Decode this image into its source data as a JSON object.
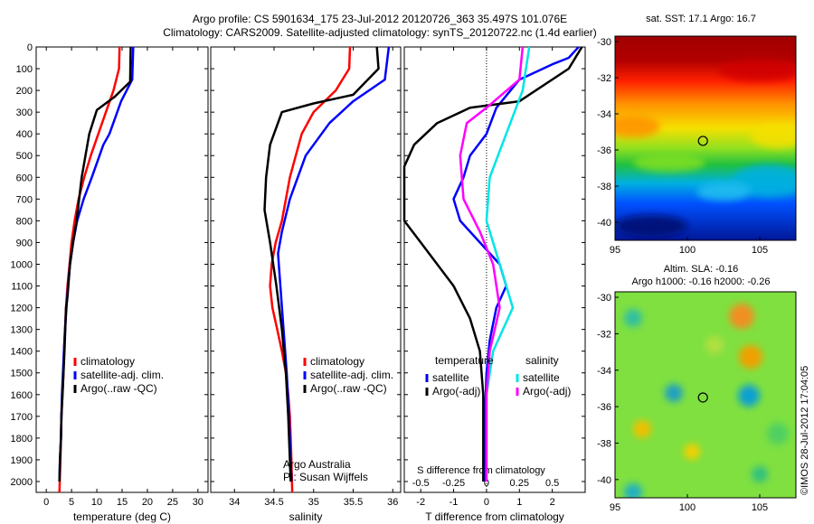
{
  "header": {
    "line1": "Argo profile: CS 5901634_175 23-Jul-2012 20120726_363 35.497S 101.076E",
    "line2": "Climatology: CARS2009. Satellite-adjusted climatology: synTS_20120722.nc (1.4d earlier)"
  },
  "depth_ticks": [
    0,
    100,
    200,
    300,
    400,
    500,
    600,
    700,
    800,
    900,
    1000,
    1100,
    1200,
    1300,
    1400,
    1500,
    1600,
    1700,
    1800,
    1900,
    2000
  ],
  "colors": {
    "climatology": "#ff0000",
    "satellite": "#0000ff",
    "argo": "#000000",
    "sat_salinity": "#00e5e5",
    "argo_salinity_adj": "#ff00ff"
  },
  "chart_data": [
    {
      "type": "line",
      "xlabel": "temperature (deg C)",
      "xlim": [
        -2,
        32
      ],
      "ylim": [
        2050,
        0
      ],
      "xticks": [
        0,
        5,
        10,
        15,
        20,
        25,
        30
      ],
      "legend": [
        "climatology",
        "satellite-adj. clim.",
        "Argo(..raw -QC)"
      ],
      "series": [
        {
          "name": "climatology",
          "color": "red",
          "points": [
            [
              14.5,
              0
            ],
            [
              14.4,
              100
            ],
            [
              13.3,
              200
            ],
            [
              11.8,
              300
            ],
            [
              10.3,
              400
            ],
            [
              8.8,
              500
            ],
            [
              7.5,
              600
            ],
            [
              6.4,
              700
            ],
            [
              5.6,
              800
            ],
            [
              5.0,
              900
            ],
            [
              4.6,
              1000
            ],
            [
              4.2,
              1100
            ],
            [
              3.9,
              1200
            ],
            [
              3.7,
              1300
            ],
            [
              3.5,
              1400
            ],
            [
              3.4,
              1500
            ],
            [
              3.2,
              1600
            ],
            [
              3.0,
              1700
            ],
            [
              2.9,
              1800
            ],
            [
              2.8,
              1900
            ],
            [
              2.6,
              2050
            ]
          ]
        },
        {
          "name": "satellite-adj. clim.",
          "color": "blue",
          "points": [
            [
              17.2,
              0
            ],
            [
              17.0,
              150
            ],
            [
              14.8,
              250
            ],
            [
              12.5,
              400
            ],
            [
              11.3,
              450
            ],
            [
              9.0,
              600
            ],
            [
              7.4,
              700
            ],
            [
              6.1,
              800
            ],
            [
              5.3,
              900
            ],
            [
              4.7,
              1000
            ],
            [
              4.3,
              1100
            ],
            [
              4.0,
              1200
            ],
            [
              3.7,
              1300
            ],
            [
              3.5,
              1400
            ],
            [
              3.3,
              1500
            ],
            [
              3.1,
              1600
            ],
            [
              3.0,
              1700
            ],
            [
              2.9,
              1800
            ],
            [
              2.7,
              1900
            ],
            [
              2.6,
              2000
            ]
          ]
        },
        {
          "name": "Argo(..raw -QC)",
          "color": "black",
          "points": [
            [
              16.7,
              0
            ],
            [
              16.6,
              160
            ],
            [
              13.5,
              230
            ],
            [
              10.0,
              290
            ],
            [
              8.5,
              400
            ],
            [
              7.0,
              600
            ],
            [
              6.0,
              800
            ],
            [
              5.3,
              900
            ],
            [
              4.7,
              1000
            ],
            [
              4.2,
              1150
            ],
            [
              3.9,
              1200
            ],
            [
              3.6,
              1400
            ],
            [
              3.4,
              1500
            ],
            [
              3.2,
              1600
            ],
            [
              3.0,
              1700
            ],
            [
              2.9,
              1800
            ],
            [
              2.7,
              1900
            ],
            [
              2.6,
              2000
            ]
          ]
        }
      ]
    },
    {
      "type": "line",
      "xlabel": "salinity",
      "xlim": [
        33.7,
        36.1
      ],
      "ylim": [
        2050,
        0
      ],
      "xticks": [
        34,
        34.5,
        35,
        35.5,
        36
      ],
      "legend": [
        "climatology",
        "satellite-adj. clim.",
        "Argo(..raw -QC)"
      ],
      "annotation": [
        "Argo Australia",
        "PI: Susan Wijffels"
      ],
      "series": [
        {
          "name": "climatology",
          "color": "red",
          "points": [
            [
              35.46,
              0
            ],
            [
              35.45,
              100
            ],
            [
              35.28,
              200
            ],
            [
              35.0,
              300
            ],
            [
              34.85,
              400
            ],
            [
              34.7,
              600
            ],
            [
              34.6,
              800
            ],
            [
              34.52,
              900
            ],
            [
              34.47,
              1000
            ],
            [
              34.45,
              1100
            ],
            [
              34.48,
              1200
            ],
            [
              34.54,
              1300
            ],
            [
              34.6,
              1400
            ],
            [
              34.65,
              1500
            ],
            [
              34.68,
              1600
            ],
            [
              34.7,
              1700
            ],
            [
              34.71,
              1800
            ],
            [
              34.72,
              1900
            ],
            [
              34.73,
              2050
            ]
          ]
        },
        {
          "name": "satellite-adj. clim.",
          "color": "blue",
          "points": [
            [
              35.95,
              0
            ],
            [
              35.9,
              150
            ],
            [
              35.5,
              250
            ],
            [
              35.2,
              350
            ],
            [
              34.9,
              500
            ],
            [
              34.7,
              700
            ],
            [
              34.6,
              850
            ],
            [
              34.55,
              950
            ],
            [
              34.58,
              1100
            ],
            [
              34.62,
              1300
            ],
            [
              34.66,
              1500
            ],
            [
              34.69,
              1700
            ],
            [
              34.71,
              1900
            ],
            [
              34.72,
              2000
            ]
          ]
        },
        {
          "name": "Argo(..raw -QC)",
          "color": "black",
          "points": [
            [
              35.8,
              0
            ],
            [
              35.82,
              100
            ],
            [
              35.5,
              220
            ],
            [
              35.0,
              260
            ],
            [
              34.6,
              300
            ],
            [
              34.45,
              450
            ],
            [
              34.4,
              600
            ],
            [
              34.38,
              750
            ],
            [
              34.45,
              900
            ],
            [
              34.53,
              1100
            ],
            [
              34.6,
              1300
            ],
            [
              34.65,
              1500
            ],
            [
              34.68,
              1700
            ],
            [
              34.7,
              1900
            ],
            [
              34.71,
              2000
            ]
          ]
        }
      ]
    },
    {
      "type": "line",
      "xlabel": "T difference from climatology",
      "x2label": "S difference from climatology",
      "xlim": [
        -2.5,
        3.0
      ],
      "ylim": [
        2050,
        0
      ],
      "xticks": [
        -2,
        -1,
        0,
        1,
        2
      ],
      "x2ticks": [
        -0.5,
        -0.25,
        0,
        0.25,
        0.5
      ],
      "x2tick_labels": [
        "-0.5",
        "-0.25",
        "0",
        "0.25",
        "0.5"
      ],
      "legend_titles": [
        "temperature",
        "salinity"
      ],
      "legend": [
        "satellite",
        "Argo(-adj)",
        "satellite",
        "Argo(-adj)"
      ],
      "series": [
        {
          "name": "satellite",
          "color": "blue",
          "points": [
            [
              2.8,
              0
            ],
            [
              2.5,
              50
            ],
            [
              2.0,
              80
            ],
            [
              1.0,
              150
            ],
            [
              0.3,
              280
            ],
            [
              0,
              400
            ],
            [
              -0.5,
              500
            ],
            [
              -0.7,
              600
            ],
            [
              -1.0,
              700
            ],
            [
              -0.8,
              800
            ],
            [
              -0.2,
              900
            ],
            [
              0.4,
              1000
            ],
            [
              0.6,
              1100
            ],
            [
              0.3,
              1200
            ],
            [
              0.1,
              1350
            ],
            [
              0,
              1500
            ],
            [
              -0.05,
              1700
            ],
            [
              -0.05,
              2000
            ]
          ]
        },
        {
          "name": "Argo(-adj)",
          "color": "black",
          "points": [
            [
              2.9,
              0
            ],
            [
              2.5,
              100
            ],
            [
              1.0,
              250
            ],
            [
              -0.5,
              280
            ],
            [
              -1.5,
              350
            ],
            [
              -2.2,
              450
            ],
            [
              -2.5,
              550
            ],
            [
              -2.5,
              800
            ],
            [
              -2.0,
              900
            ],
            [
              -1.5,
              1000
            ],
            [
              -1.0,
              1100
            ],
            [
              -0.5,
              1250
            ],
            [
              -0.2,
              1400
            ],
            [
              -0.1,
              1600
            ],
            [
              -0.1,
              2000
            ]
          ]
        },
        {
          "name": "satellite",
          "color": "cyan",
          "points": [
            [
              1.3,
              0
            ],
            [
              1.1,
              200
            ],
            [
              0.6,
              400
            ],
            [
              0.1,
              600
            ],
            [
              0,
              800
            ],
            [
              0.4,
              1000
            ],
            [
              0.8,
              1200
            ],
            [
              0.2,
              1400
            ],
            [
              0,
              1600
            ],
            [
              0,
              2000
            ]
          ]
        },
        {
          "name": "Argo(-adj)",
          "color": "magenta",
          "points": [
            [
              1.1,
              0
            ],
            [
              1.0,
              150
            ],
            [
              0.0,
              280
            ],
            [
              -0.6,
              350
            ],
            [
              -0.8,
              500
            ],
            [
              -0.7,
              700
            ],
            [
              -0.2,
              850
            ],
            [
              0.2,
              1000
            ],
            [
              0.4,
              1200
            ],
            [
              0.1,
              1400
            ],
            [
              0,
              1600
            ],
            [
              0,
              2000
            ]
          ]
        }
      ]
    },
    {
      "type": "heatmap",
      "title": "sat. SST: 17.1  Argo: 16.7",
      "xlim": [
        95,
        107.5
      ],
      "ylim": [
        -41,
        -29.7
      ],
      "xticks": [
        95,
        100,
        105
      ],
      "yticks": [
        -30,
        -32,
        -34,
        -36,
        -38,
        -40
      ],
      "marker": {
        "lon": 101.076,
        "lat": -35.497
      }
    },
    {
      "type": "heatmap",
      "title": "Altim. SLA: -0.16",
      "subtitle": "Argo h1000: -0.16 h2000: -0.26",
      "xlim": [
        95,
        107.5
      ],
      "ylim": [
        -41,
        -29.7
      ],
      "xticks": [
        95,
        100,
        105
      ],
      "yticks": [
        -30,
        -32,
        -34,
        -36,
        -38,
        -40
      ],
      "marker": {
        "lon": 101.076,
        "lat": -35.497
      }
    }
  ],
  "footer_side": "©IMOS 28-Jul-2012 17:04:05"
}
